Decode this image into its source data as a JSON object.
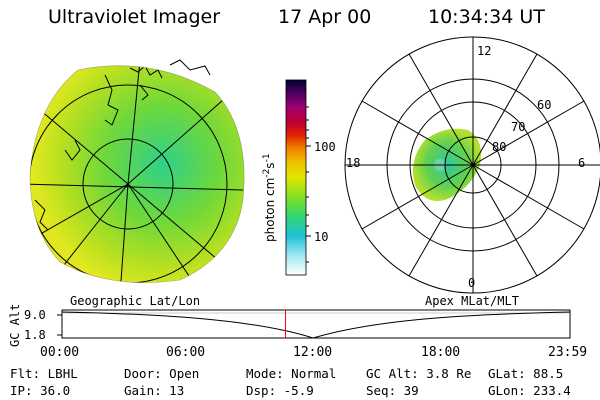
{
  "header": {
    "instrument": "Ultraviolet Imager",
    "date": "17 Apr 00",
    "time": "10:34:34 UT"
  },
  "colorbar": {
    "unit_label": "photon cm",
    "unit_sup1": "-2",
    "unit_mid": "s",
    "unit_sup2": "-1",
    "ticks": [
      "100",
      "10"
    ]
  },
  "polar_plot": {
    "lat_labels": [
      "60",
      "70",
      "80"
    ],
    "mlt_labels": {
      "top": "12",
      "left": "18",
      "right": "6",
      "bottom": "0"
    }
  },
  "left_panel_label": "Geographic Lat/Lon",
  "right_panel_label": "Apex MLat/MLT",
  "altitude_plot": {
    "axis_label": "GC Alt",
    "y_ticks": [
      "9.0",
      "1.8"
    ],
    "x_ticks": [
      "00:00",
      "06:00",
      "12:00",
      "18:00",
      "23:59"
    ],
    "current_time_fraction": 0.44,
    "colors": {
      "marker": "#ff0000",
      "curve": "#000000"
    }
  },
  "status": {
    "row1": [
      {
        "key": "Flt:",
        "value": "LBHL"
      },
      {
        "key": "Door:",
        "value": "Open"
      },
      {
        "key": "Mode:",
        "value": "Normal"
      },
      {
        "key": "GC Alt:",
        "value": "3.8 Re"
      },
      {
        "key": "GLat:",
        "value": "88.5"
      }
    ],
    "row2": [
      {
        "key": "IP:",
        "value": "36.0"
      },
      {
        "key": "Gain:",
        "value": "13"
      },
      {
        "key": "Dsp:",
        "value": "-5.9"
      },
      {
        "key": "Seq:",
        "value": "39"
      },
      {
        "key": "GLon:",
        "value": "233.4"
      }
    ]
  }
}
